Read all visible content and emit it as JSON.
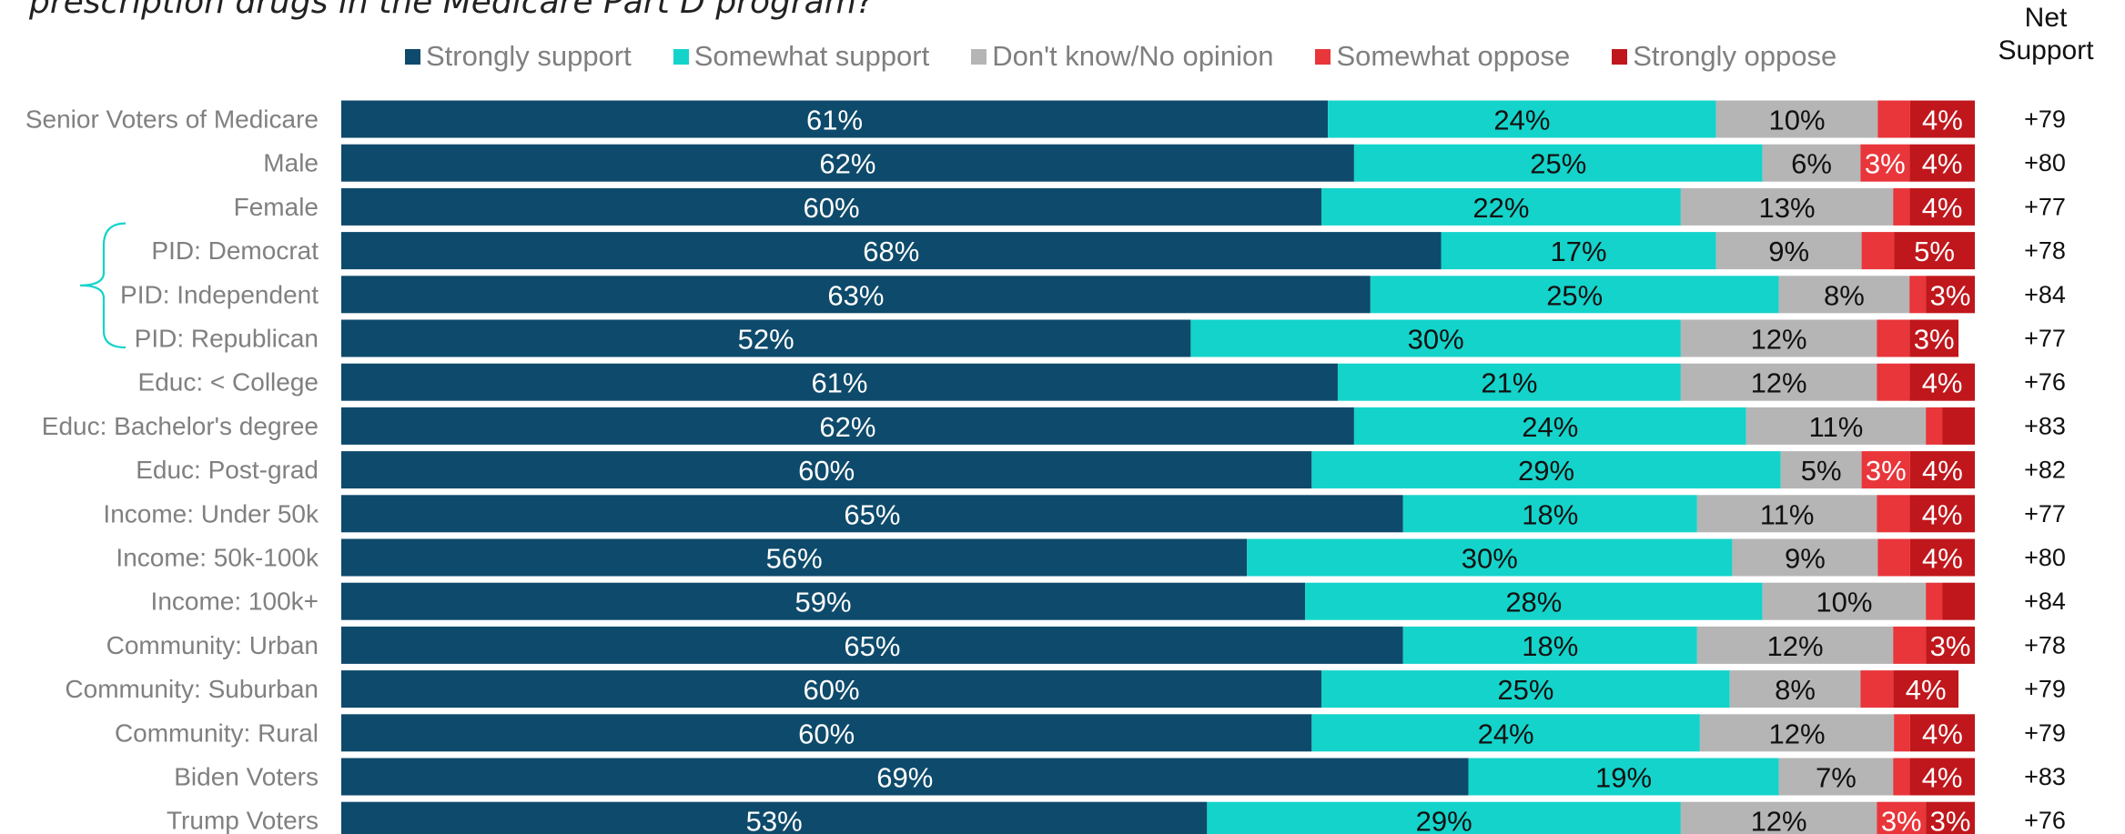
{
  "question": "prescription drugs in the Medicare Part D program?",
  "net_header": [
    "Net",
    "Support"
  ],
  "colors": {
    "strongly_support": "#0e4a6b",
    "somewhat_support": "#14d3ca",
    "dont_know": "#b5b5b5",
    "somewhat_oppose": "#e8363b",
    "strongly_oppose": "#c0171c",
    "row_label": "#808080"
  },
  "chart_data": {
    "type": "bar",
    "orientation": "horizontal",
    "stacked": true,
    "normalized": true,
    "legend_position": "top",
    "xlim": [
      0,
      100
    ],
    "unit": "%",
    "categories": [
      "Senior Voters of Medicare",
      "Male",
      "Female",
      "PID: Democrat",
      "PID: Independent",
      "PID: Republican",
      "Educ: < College",
      "Educ: Bachelor's degree",
      "Educ: Post-grad",
      "Income: Under 50k",
      "Income: 50k-100k",
      "Income: 100k+",
      "Community: Urban",
      "Community: Suburban",
      "Community: Rural",
      "Biden Voters",
      "Trump Voters"
    ],
    "series": [
      {
        "name": "Strongly support",
        "values": [
          61,
          62,
          60,
          68,
          63,
          52,
          61,
          62,
          60,
          65,
          56,
          59,
          65,
          60,
          60,
          69,
          53
        ],
        "labels": [
          "61%",
          "62%",
          "60%",
          "68%",
          "63%",
          "52%",
          "61%",
          "62%",
          "60%",
          "65%",
          "56%",
          "59%",
          "65%",
          "60%",
          "60%",
          "69%",
          "53%"
        ]
      },
      {
        "name": "Somewhat support",
        "values": [
          24,
          25,
          22,
          17,
          25,
          30,
          21,
          24,
          29,
          18,
          30,
          28,
          18,
          25,
          24,
          19,
          29
        ],
        "labels": [
          "24%",
          "25%",
          "22%",
          "17%",
          "25%",
          "30%",
          "21%",
          "24%",
          "29%",
          "18%",
          "30%",
          "28%",
          "18%",
          "25%",
          "24%",
          "19%",
          "29%"
        ]
      },
      {
        "name": "Don't know/No opinion",
        "values": [
          10,
          6,
          13,
          9,
          8,
          12,
          12,
          11,
          5,
          11,
          9,
          10,
          12,
          8,
          12,
          7,
          12
        ],
        "labels": [
          "10%",
          "6%",
          "13%",
          "9%",
          "8%",
          "12%",
          "12%",
          "11%",
          "5%",
          "11%",
          "9%",
          "10%",
          "12%",
          "8%",
          "12%",
          "7%",
          "12%"
        ]
      },
      {
        "name": "Somewhat oppose",
        "values": [
          2,
          3,
          1,
          2,
          1,
          2,
          2,
          1,
          3,
          2,
          2,
          1,
          2,
          2,
          1,
          1,
          3
        ],
        "labels": [
          "",
          "3%",
          "",
          "",
          "",
          "",
          "",
          "",
          "3%",
          "",
          "",
          "",
          "",
          "",
          "",
          "",
          "3%"
        ]
      },
      {
        "name": "Strongly oppose",
        "values": [
          4,
          4,
          4,
          5,
          3,
          3,
          4,
          2,
          4,
          4,
          4,
          2,
          3,
          4,
          4,
          4,
          3
        ],
        "labels": [
          "4%",
          "4%",
          "4%",
          "5%",
          "3%",
          "3%",
          "4%",
          "",
          "4%",
          "4%",
          "4%",
          "",
          "3%",
          "4%",
          "4%",
          "4%",
          "3%"
        ]
      }
    ],
    "net_support": [
      "+79",
      "+80",
      "+77",
      "+78",
      "+84",
      "+77",
      "+76",
      "+83",
      "+82",
      "+77",
      "+80",
      "+84",
      "+78",
      "+79",
      "+79",
      "+83",
      "+76"
    ],
    "bracket_group": [
      "PID: Democrat",
      "PID: Independent",
      "PID: Republican"
    ]
  }
}
